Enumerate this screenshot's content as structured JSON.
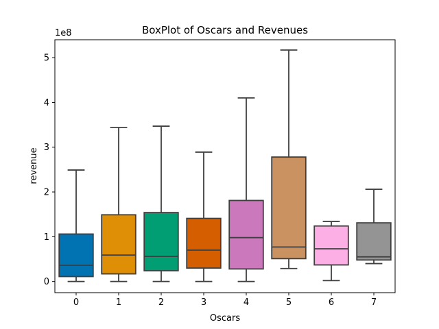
{
  "chart_data": {
    "type": "box",
    "title": "BoxPlot of Oscars and Revenues",
    "xlabel": "Oscars",
    "ylabel": "revenue",
    "y_scale_label": "1e8",
    "categories": [
      "0",
      "1",
      "2",
      "3",
      "4",
      "5",
      "6",
      "7"
    ],
    "y_ticks": [
      0,
      1,
      2,
      3,
      4,
      5
    ],
    "ylim": [
      -0.25,
      5.4
    ],
    "colors": [
      "#0173b2",
      "#de8f05",
      "#029e73",
      "#d55e00",
      "#cc78bc",
      "#ca9161",
      "#fbafe4",
      "#949494"
    ],
    "edge_color": "#3f3f3f",
    "boxes": [
      {
        "category": "0",
        "whisker_low": 0.0,
        "q1": 0.11,
        "median": 0.36,
        "q3": 1.06,
        "whisker_high": 2.49
      },
      {
        "category": "1",
        "whisker_low": 0.0,
        "q1": 0.17,
        "median": 0.59,
        "q3": 1.49,
        "whisker_high": 3.44
      },
      {
        "category": "2",
        "whisker_low": 0.0,
        "q1": 0.24,
        "median": 0.56,
        "q3": 1.54,
        "whisker_high": 3.47
      },
      {
        "category": "3",
        "whisker_low": 0.0,
        "q1": 0.3,
        "median": 0.7,
        "q3": 1.41,
        "whisker_high": 2.89
      },
      {
        "category": "4",
        "whisker_low": 0.0,
        "q1": 0.28,
        "median": 0.98,
        "q3": 1.81,
        "whisker_high": 4.1
      },
      {
        "category": "5",
        "whisker_low": 0.29,
        "q1": 0.51,
        "median": 0.77,
        "q3": 2.78,
        "whisker_high": 5.17
      },
      {
        "category": "6",
        "whisker_low": 0.02,
        "q1": 0.37,
        "median": 0.73,
        "q3": 1.24,
        "whisker_high": 1.34
      },
      {
        "category": "7",
        "whisker_low": 0.4,
        "q1": 0.48,
        "median": 0.55,
        "q3": 1.31,
        "whisker_high": 2.06
      }
    ]
  }
}
